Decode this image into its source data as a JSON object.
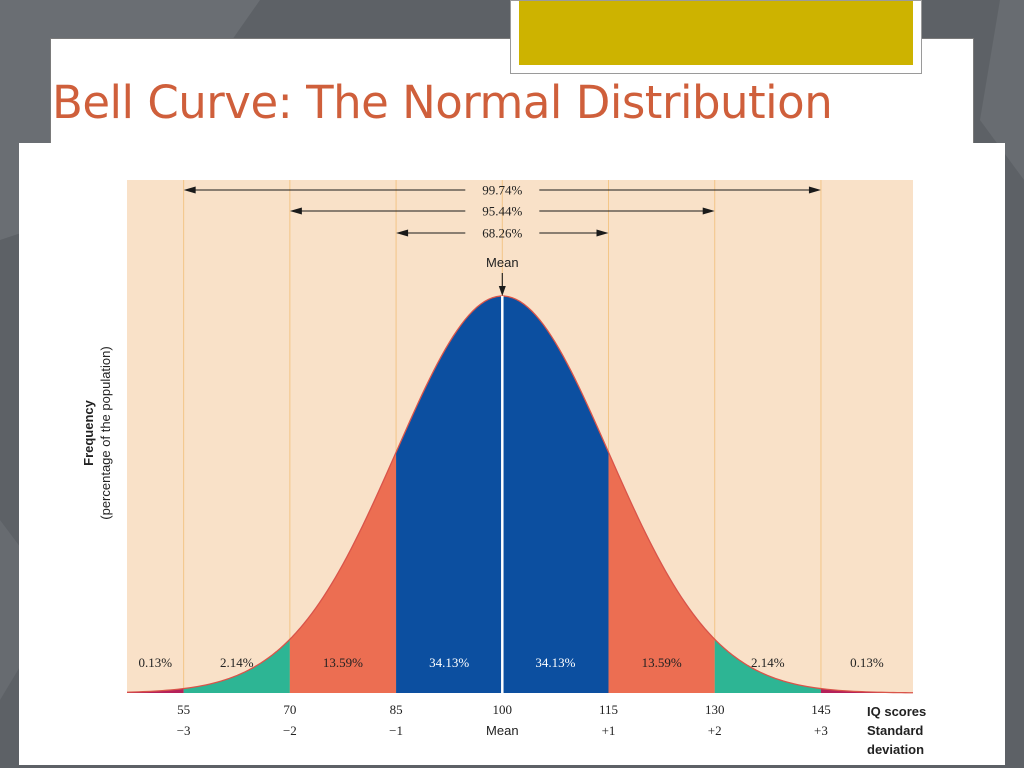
{
  "slide": {
    "title": "Bell Curve: The Normal Distribution",
    "colors": {
      "title": "#cf5f3b",
      "accent": "#cdb300",
      "background": "#5d6166"
    }
  },
  "chart_data": {
    "type": "area",
    "title": "",
    "ylabel": "Frequency",
    "ylabel_sub": "(percentage of the population)",
    "xlabel": "IQ scores",
    "xlabel2": "Standard deviation",
    "xlabel2_lines": [
      "Standard",
      "deviation"
    ],
    "mean": 100,
    "sd": 15,
    "xlim": [
      47,
      158
    ],
    "iq_ticks": [
      "55",
      "70",
      "85",
      "100",
      "115",
      "130",
      "145"
    ],
    "iq_values": [
      55,
      70,
      85,
      100,
      115,
      130,
      145
    ],
    "sd_ticks": [
      "−3",
      "−2",
      "−1",
      "Mean",
      "+1",
      "+2",
      "+3"
    ],
    "mean_label": "Mean",
    "regions": [
      {
        "from": 47,
        "to": 55,
        "percent": "0.13%",
        "color": "#b5215a"
      },
      {
        "from": 55,
        "to": 70,
        "percent": "2.14%",
        "color": "#2db594"
      },
      {
        "from": 70,
        "to": 85,
        "percent": "13.59%",
        "color": "#ec6e52"
      },
      {
        "from": 85,
        "to": 100,
        "percent": "34.13%",
        "color": "#0c4fa0"
      },
      {
        "from": 100,
        "to": 115,
        "percent": "34.13%",
        "color": "#0c4fa0"
      },
      {
        "from": 115,
        "to": 130,
        "percent": "13.59%",
        "color": "#ec6e52"
      },
      {
        "from": 130,
        "to": 145,
        "percent": "2.14%",
        "color": "#2db594"
      },
      {
        "from": 145,
        "to": 158,
        "percent": "0.13%",
        "color": "#b5215a"
      }
    ],
    "ranges": [
      {
        "label": "99.74%",
        "from": 55,
        "to": 145
      },
      {
        "label": "95.44%",
        "from": 70,
        "to": 130
      },
      {
        "label": "68.26%",
        "from": 85,
        "to": 115
      }
    ],
    "colors": {
      "plot_background": "#f9e1c8",
      "gridline": "#f3c587",
      "curve": "#d9544a"
    }
  }
}
